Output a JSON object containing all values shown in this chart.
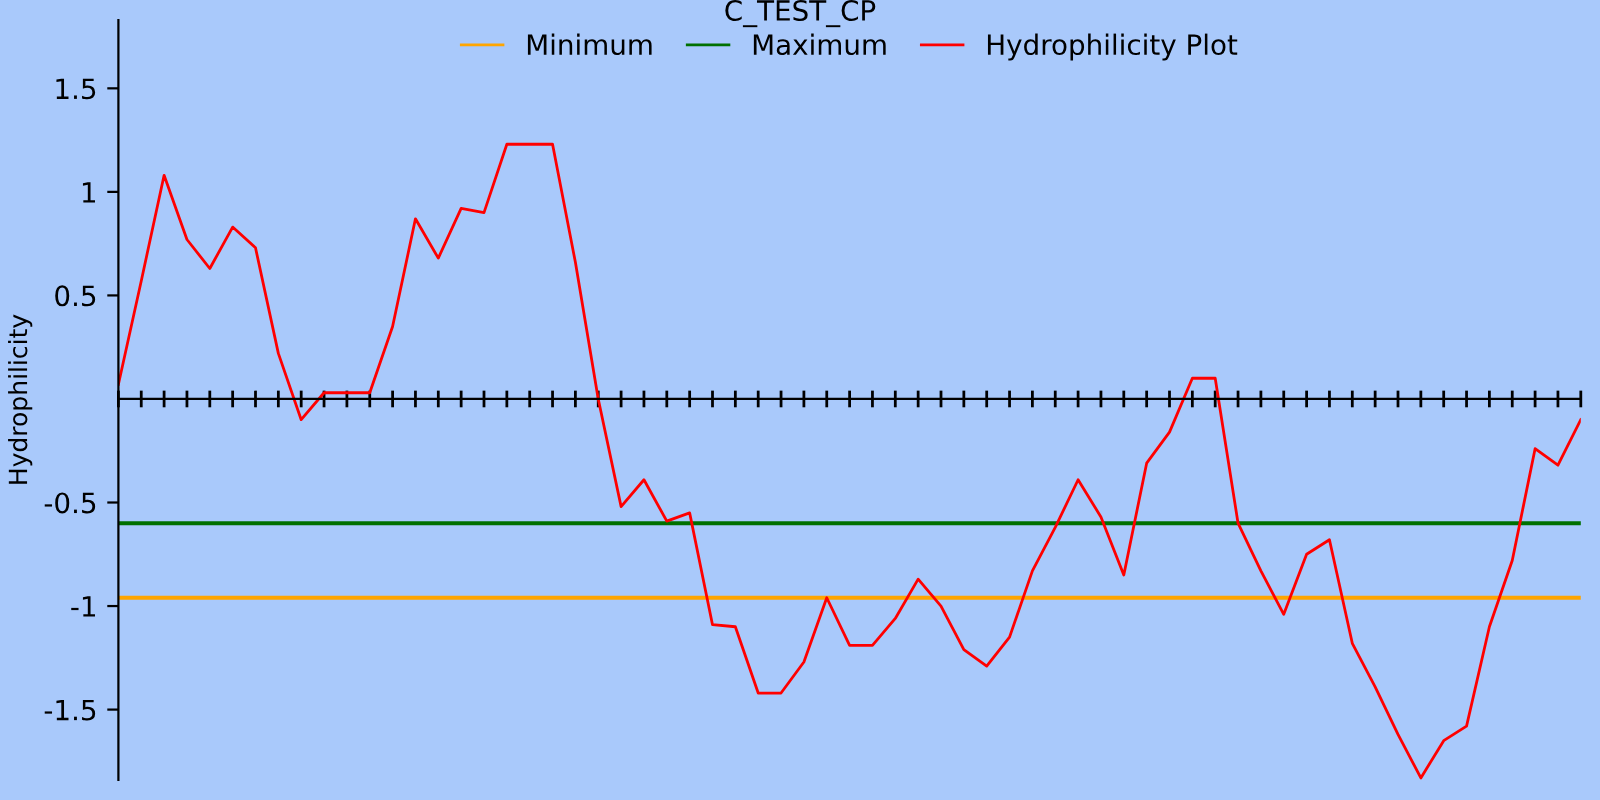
{
  "chart_data": {
    "type": "line",
    "title": "C_TEST_CP",
    "ylabel": "Hydrophilicity",
    "categories": [
      null,
      null,
      null,
      null,
      null,
      null,
      null,
      null,
      null,
      null,
      null,
      null,
      null,
      null,
      null,
      null,
      null,
      null,
      null,
      null,
      null,
      null,
      null,
      null,
      null,
      null,
      null,
      null,
      null,
      null,
      null,
      null,
      null,
      null,
      null,
      null,
      null,
      null,
      null,
      null,
      null,
      null,
      null,
      null,
      null,
      null,
      null,
      null,
      null,
      null,
      null,
      null,
      null,
      null,
      null,
      null,
      null,
      null,
      null,
      null,
      null,
      null,
      null,
      null,
      null
    ],
    "series": [
      {
        "name": "Minimum",
        "color": "#ffa500",
        "values": [
          -0.96,
          -0.96,
          -0.96,
          -0.96,
          -0.96,
          -0.96,
          -0.96,
          -0.96,
          -0.96,
          -0.96,
          -0.96,
          -0.96,
          -0.96,
          -0.96,
          -0.96,
          -0.96,
          -0.96,
          -0.96,
          -0.96,
          -0.96,
          -0.96,
          -0.96,
          -0.96,
          -0.96,
          -0.96,
          -0.96,
          -0.96,
          -0.96,
          -0.96,
          -0.96,
          -0.96,
          -0.96,
          -0.96,
          -0.96,
          -0.96,
          -0.96,
          -0.96,
          -0.96,
          -0.96,
          -0.96,
          -0.96,
          -0.96,
          -0.96,
          -0.96,
          -0.96,
          -0.96,
          -0.96,
          -0.96,
          -0.96,
          -0.96,
          -0.96,
          -0.96,
          -0.96,
          -0.96,
          -0.96,
          -0.96,
          -0.96,
          -0.96,
          -0.96,
          -0.96,
          -0.96,
          -0.96,
          -0.96,
          -0.96,
          -0.96
        ]
      },
      {
        "name": "Maximum",
        "color": "#007000",
        "values": [
          -0.6,
          -0.6,
          -0.6,
          -0.6,
          -0.6,
          -0.6,
          -0.6,
          -0.6,
          -0.6,
          -0.6,
          -0.6,
          -0.6,
          -0.6,
          -0.6,
          -0.6,
          -0.6,
          -0.6,
          -0.6,
          -0.6,
          -0.6,
          -0.6,
          -0.6,
          -0.6,
          -0.6,
          -0.6,
          -0.6,
          -0.6,
          -0.6,
          -0.6,
          -0.6,
          -0.6,
          -0.6,
          -0.6,
          -0.6,
          -0.6,
          -0.6,
          -0.6,
          -0.6,
          -0.6,
          -0.6,
          -0.6,
          -0.6,
          -0.6,
          -0.6,
          -0.6,
          -0.6,
          -0.6,
          -0.6,
          -0.6,
          -0.6,
          -0.6,
          -0.6,
          -0.6,
          -0.6,
          -0.6,
          -0.6,
          -0.6,
          -0.6,
          -0.6,
          -0.6,
          -0.6,
          -0.6,
          -0.6,
          -0.6,
          -0.6
        ]
      },
      {
        "name": "Hydrophilicity Plot",
        "color": "#ff0000",
        "values": [
          0.07,
          0.57,
          1.08,
          0.77,
          0.63,
          0.83,
          0.73,
          0.22,
          -0.1,
          0.03,
          0.03,
          0.03,
          0.35,
          0.87,
          0.68,
          0.92,
          0.9,
          1.23,
          1.23,
          1.23,
          0.66,
          0.0,
          -0.52,
          -0.39,
          -0.59,
          -0.55,
          -1.09,
          -1.1,
          -1.42,
          -1.42,
          -1.27,
          -0.96,
          -1.19,
          -1.19,
          -1.06,
          -0.87,
          -1.0,
          -1.21,
          -1.29,
          -1.15,
          -0.83,
          -0.62,
          -0.39,
          -0.57,
          -0.85,
          -0.31,
          -0.16,
          0.1,
          0.1,
          -0.6,
          -0.83,
          -1.04,
          -0.75,
          -0.68,
          -1.18,
          -1.39,
          -1.62,
          -1.83,
          -1.65,
          -1.58,
          -1.1,
          -0.78,
          -0.24,
          -0.32,
          -0.1
        ]
      }
    ],
    "ylim": [
      -1.84,
      1.83
    ],
    "yticks": [
      {
        "value": -1.5,
        "label": "-1.5"
      },
      {
        "value": -1,
        "label": "-1"
      },
      {
        "value": -0.5,
        "label": "-0.5"
      },
      {
        "value": 0.5,
        "label": "0.5"
      },
      {
        "value": 1,
        "label": "1"
      },
      {
        "value": 1.5,
        "label": "1.5"
      }
    ],
    "legend": "top",
    "grid": false,
    "marker": "none",
    "line_style": "solid"
  }
}
